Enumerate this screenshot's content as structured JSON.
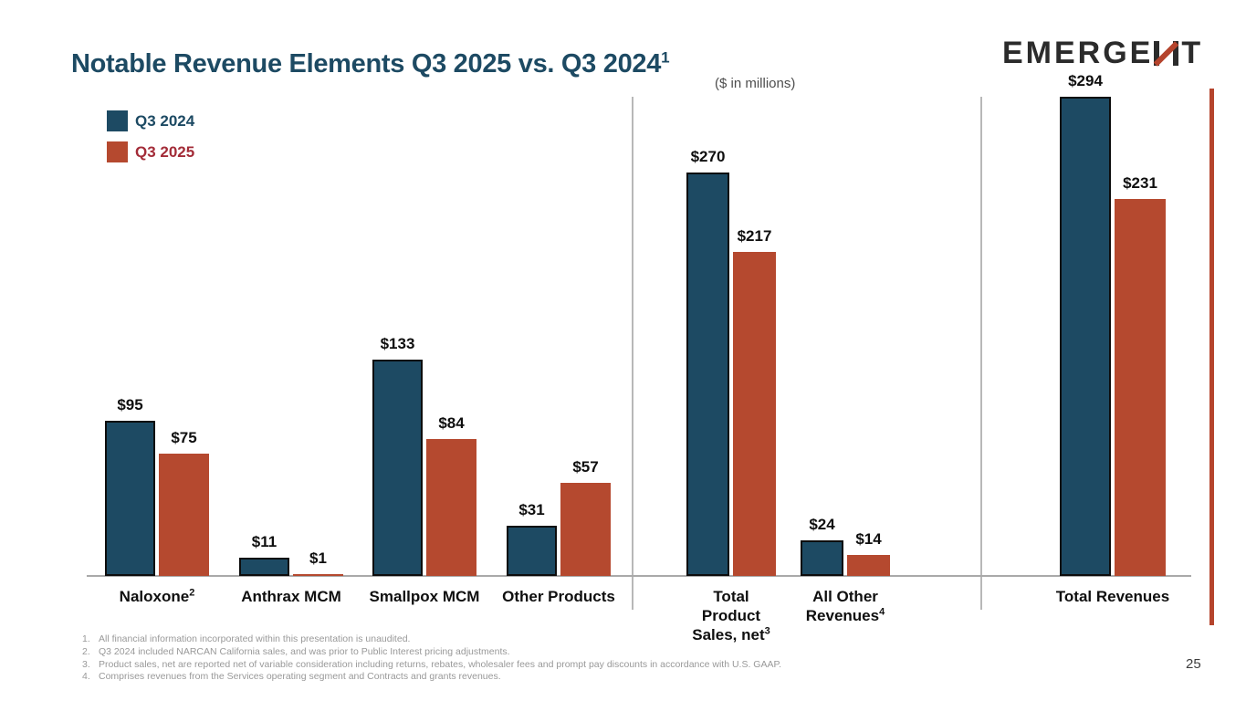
{
  "slide": {
    "title": "Notable Revenue Elements Q3 2025 vs. Q3 2024",
    "title_superscript": "1",
    "subtitle": "($ in millions)",
    "logo_text": "EMERGENT",
    "page_number": "25",
    "footnotes": [
      {
        "num": "1.",
        "text": "All financial information incorporated within this presentation is unaudited."
      },
      {
        "num": "2.",
        "text": "Q3 2024 included NARCAN California sales, and was prior to Public Interest pricing adjustments."
      },
      {
        "num": "3.",
        "text": "Product sales, net are reported net of variable consideration including returns, rebates, wholesaler fees and prompt pay discounts in accordance with U.S. GAAP."
      },
      {
        "num": "4.",
        "text": "Comprises revenues from the Services operating segment and Contracts and grants revenues."
      }
    ]
  },
  "legend": [
    {
      "label": "Q3 2024",
      "color": "#1d4a63"
    },
    {
      "label": "Q3 2025",
      "color": "#b5492f"
    }
  ],
  "chart_data": {
    "type": "bar",
    "title": "Notable Revenue Elements Q3 2025 vs. Q3 2024",
    "unit": "$ in millions",
    "value_prefix": "$",
    "series_names": [
      "Q3 2024",
      "Q3 2025"
    ],
    "colors": {
      "q3_2024": "#1d4a63",
      "q3_2025": "#b5492f"
    },
    "legend_position": "top-left",
    "grid": false,
    "groups": [
      {
        "label_lines": [
          "Naloxone"
        ],
        "superscript": "2",
        "q3_2024": 95,
        "q3_2025": 75
      },
      {
        "label_lines": [
          "Anthrax MCM"
        ],
        "superscript": "",
        "q3_2024": 11,
        "q3_2025": 1
      },
      {
        "label_lines": [
          "Smallpox MCM"
        ],
        "superscript": "",
        "q3_2024": 133,
        "q3_2025": 84
      },
      {
        "label_lines": [
          "Other Products"
        ],
        "superscript": "",
        "q3_2024": 31,
        "q3_2025": 57
      },
      {
        "label_lines": [
          "Total",
          "Product",
          "Sales, net"
        ],
        "superscript": "3",
        "q3_2024": 270,
        "q3_2025": 217
      },
      {
        "label_lines": [
          "All Other",
          "Revenues"
        ],
        "superscript": "4",
        "q3_2024": 24,
        "q3_2025": 14
      },
      {
        "label_lines": [
          "Total Revenues"
        ],
        "superscript": "",
        "q3_2024": 294,
        "q3_2025": 231
      }
    ]
  }
}
